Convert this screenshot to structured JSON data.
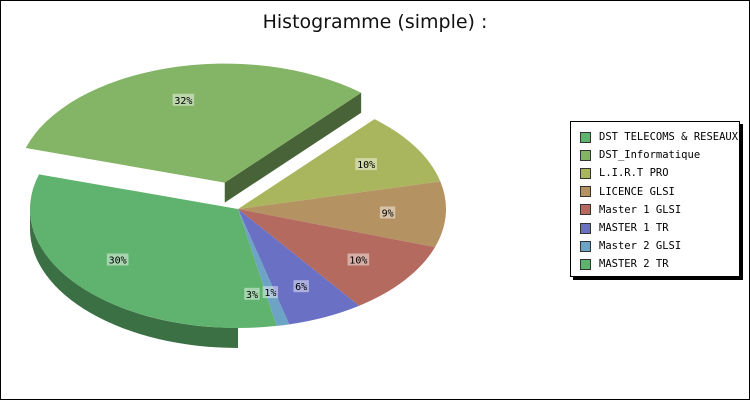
{
  "chart_data": {
    "type": "pie",
    "title": "Histogramme (simple) :",
    "categories": [
      "DST TELECOMS & RESEAUX",
      "DST_Informatique",
      "L.I.R.T PRO",
      "LICENCE GLSI",
      "Master 1 GLSI",
      "MASTER 1 TR",
      "Master 2 GLSI",
      "MASTER 2 TR"
    ],
    "values": [
      30,
      32,
      10,
      9,
      10,
      6,
      1,
      3
    ],
    "labels": [
      "30%",
      "32%",
      "10%",
      "9%",
      "10%",
      "6%",
      "1%",
      "3%"
    ],
    "colors": [
      "#5fb36e",
      "#84b466",
      "#aab65e",
      "#b59262",
      "#b46a5f",
      "#6a70c4",
      "#6da3c4",
      "#5fb36e"
    ],
    "exploded": "DST_Informatique",
    "legend_position": "right",
    "three_d": true
  }
}
